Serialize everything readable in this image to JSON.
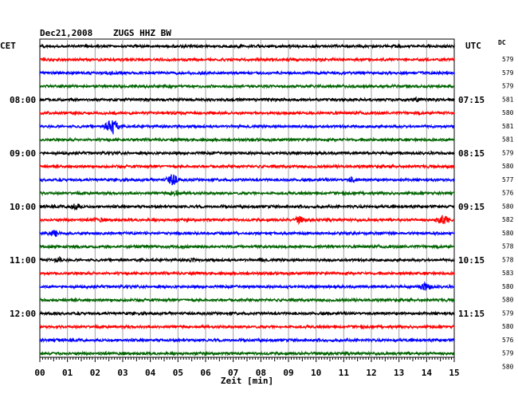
{
  "header": {
    "date": "Dec21,2008",
    "station": "ZUGS HHZ BW",
    "left_zone": "CET",
    "right_zone": "UTC",
    "dc_label": "DC"
  },
  "chart_data": {
    "type": "line",
    "title": "Dec21,2008   ZUGS HHZ BW",
    "xlabel": "Zeit [min]",
    "xlim": [
      0,
      15
    ],
    "x_ticks": [
      "00",
      "01",
      "02",
      "03",
      "04",
      "05",
      "06",
      "07",
      "08",
      "09",
      "10",
      "11",
      "12",
      "13",
      "14",
      "15"
    ],
    "grid": true,
    "trace_colors": [
      "#000000",
      "#ff0000",
      "#0000ff",
      "#006400"
    ],
    "left_time_labels": [
      {
        "trace": 4,
        "text": "08:00"
      },
      {
        "trace": 8,
        "text": "09:00"
      },
      {
        "trace": 12,
        "text": "10:00"
      },
      {
        "trace": 16,
        "text": "11:00"
      },
      {
        "trace": 20,
        "text": "12:00"
      }
    ],
    "right_time_labels": [
      {
        "trace": 4,
        "text": "07:15"
      },
      {
        "trace": 8,
        "text": "08:15"
      },
      {
        "trace": 12,
        "text": "09:15"
      },
      {
        "trace": 16,
        "text": "10:15"
      },
      {
        "trace": 20,
        "text": "11:15"
      }
    ],
    "dc_values": [
      579,
      579,
      579,
      581,
      580,
      581,
      581,
      579,
      580,
      577,
      576,
      580,
      582,
      580,
      578,
      578,
      583,
      580,
      580,
      579,
      580,
      576,
      579,
      580
    ],
    "events": [
      {
        "trace": 4,
        "minute": 13.6,
        "amp": 4
      },
      {
        "trace": 6,
        "minute": 2.6,
        "amp": 12
      },
      {
        "trace": 10,
        "minute": 4.8,
        "amp": 8
      },
      {
        "trace": 10,
        "minute": 11.3,
        "amp": 4
      },
      {
        "trace": 11,
        "minute": 4.9,
        "amp": 4
      },
      {
        "trace": 12,
        "minute": 1.3,
        "amp": 5
      },
      {
        "trace": 13,
        "minute": 2.1,
        "amp": 4
      },
      {
        "trace": 13,
        "minute": 9.4,
        "amp": 5
      },
      {
        "trace": 13,
        "minute": 14.6,
        "amp": 9
      },
      {
        "trace": 14,
        "minute": 0.5,
        "amp": 5
      },
      {
        "trace": 16,
        "minute": 0.7,
        "amp": 4
      },
      {
        "trace": 16,
        "minute": 5.5,
        "amp": 3
      },
      {
        "trace": 16,
        "minute": 8.0,
        "amp": 3
      },
      {
        "trace": 18,
        "minute": 14.0,
        "amp": 7
      }
    ]
  }
}
